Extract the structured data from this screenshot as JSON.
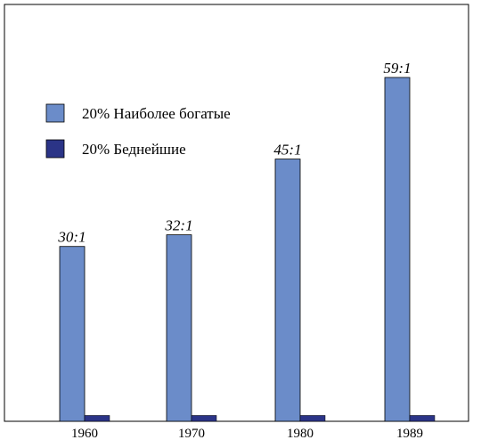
{
  "chart_data": {
    "type": "bar",
    "categories": [
      "1960",
      "1970",
      "1980",
      "1989"
    ],
    "series": [
      {
        "name": "20% Наиболее богатые",
        "values": [
          30,
          32,
          45,
          59
        ],
        "color": "#6b8cc9"
      },
      {
        "name": "20% Беднейшие",
        "values": [
          1,
          1,
          1,
          1
        ],
        "color": "#2b3487"
      }
    ],
    "data_labels": [
      "30:1",
      "32:1",
      "45:1",
      "59:1"
    ],
    "ylim": [
      0,
      70
    ],
    "grid": false,
    "legend_position": "top-left"
  }
}
